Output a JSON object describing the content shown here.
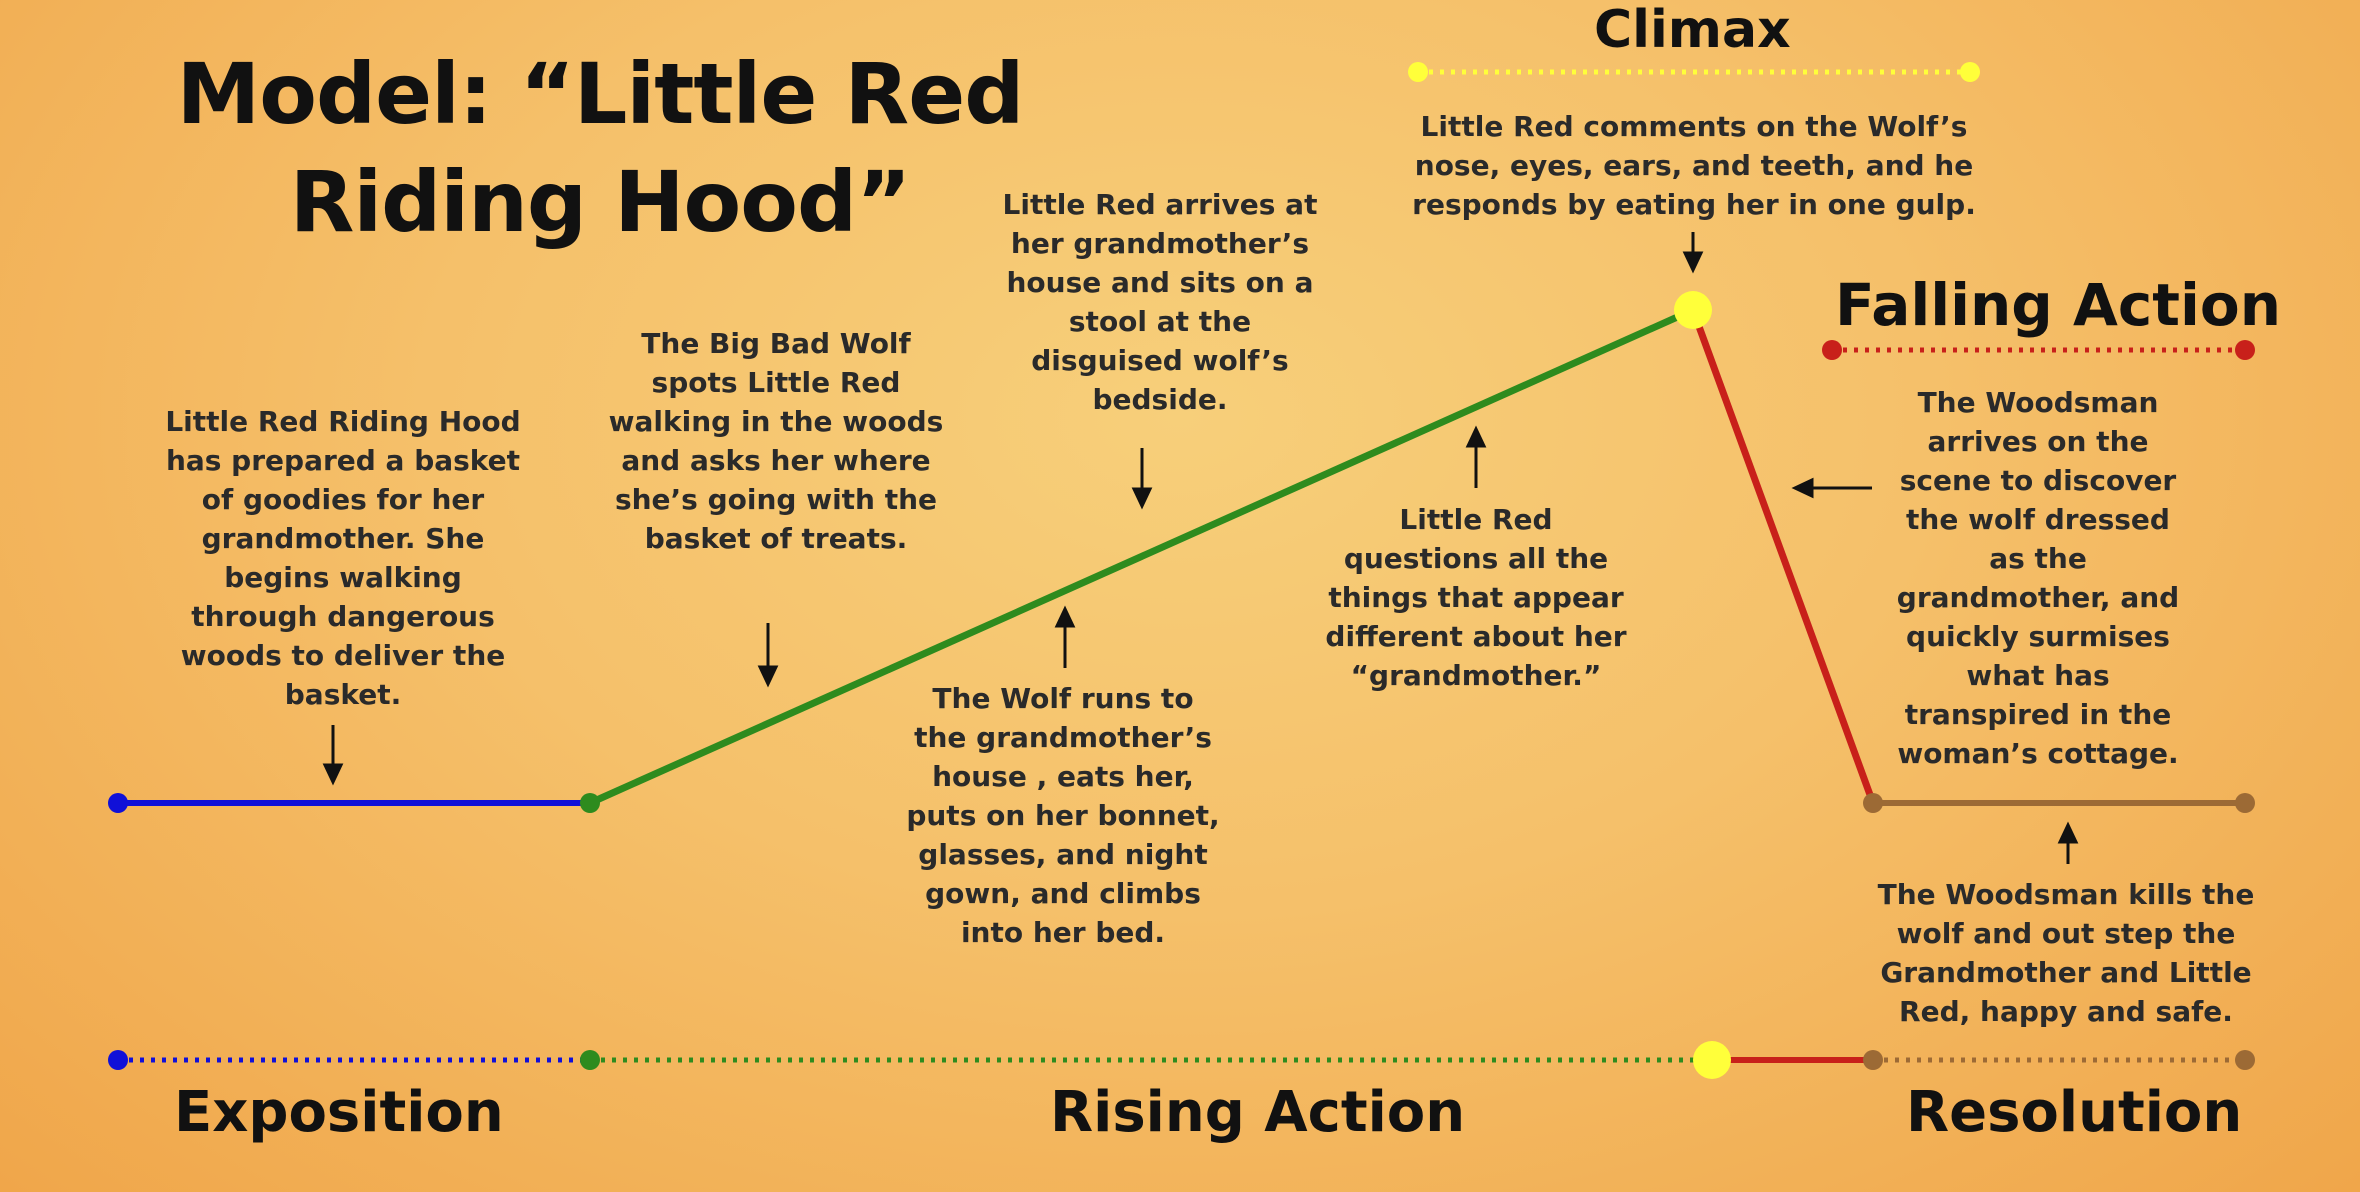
{
  "title": "Model:  “Little Red Riding Hood”",
  "stages": {
    "climax": "Climax",
    "falling_action": "Falling Action",
    "exposition": "Exposition",
    "rising_action": "Rising Action",
    "resolution": "Resolution"
  },
  "events": {
    "exposition": "Little Red Riding Hood has prepared  a basket of goodies for her grandmother.  She begins walking through dangerous woods to deliver the basket.",
    "wolf_spots": "The Big Bad Wolf spots Little Red walking in the woods and asks her where she’s going with the basket of treats.",
    "wolf_runs": "The Wolf runs to the grandmother’s house , eats her, puts on her bonnet, glasses, and night gown, and climbs into her bed.",
    "arrives": "Little Red arrives at her grandmother’s house and sits on a stool at the disguised wolf’s bedside.",
    "questions": "Little Red questions all the things that appear different about her “grandmother.”",
    "climax": "Little Red comments on the Wolf’s nose, eyes, ears, and teeth, and he responds by eating her in one gulp.",
    "woodsman_arrives": "The Woodsman arrives on the scene to discover the wolf dressed as the grandmother, and quickly surmises what has transpired in the woman’s cottage.",
    "resolution": "The Woodsman kills the wolf and out step the Grandmother and Little Red, happy and safe."
  },
  "colors": {
    "exposition": "#1010d8",
    "rising_action": "#2e8b1e",
    "climax": "#ffff3a",
    "falling_action": "#c8201a",
    "resolution": "#9c6a35"
  }
}
